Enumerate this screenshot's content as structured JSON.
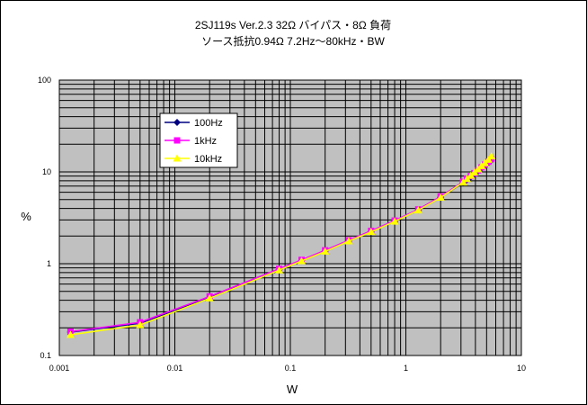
{
  "chart_data": {
    "type": "line",
    "title_line1": "2SJ119s Ver.2.3 32Ω バイパス・8Ω 負荷",
    "title_line2": "ソース抵抗0.94Ω 7.2Hz～80kHz・BW",
    "xlabel": "W",
    "ylabel": "%",
    "x_scale": "log",
    "y_scale": "log",
    "xlim": [
      0.001,
      10
    ],
    "ylim": [
      0.1,
      100
    ],
    "x_tick_labels": [
      "0.001",
      "0.01",
      "0.1",
      "1",
      "10"
    ],
    "y_tick_labels": [
      "0.1",
      "1",
      "10",
      "100"
    ],
    "grid": true,
    "plot_background": "#c0c0c0",
    "legend_position": "upper-left",
    "series": [
      {
        "name": "100Hz",
        "color": "#000080",
        "marker": "diamond",
        "x": [
          0.00125,
          0.005,
          0.02,
          0.08,
          0.125,
          0.2,
          0.32,
          0.5,
          0.8,
          1.28,
          2.0,
          3.13,
          3.38,
          3.65,
          3.92,
          4.22,
          4.52,
          4.84,
          5.18,
          5.5
        ],
        "y": [
          0.18,
          0.225,
          0.43,
          0.86,
          1.08,
          1.37,
          1.78,
          2.25,
          2.9,
          3.85,
          5.3,
          7.6,
          8.2,
          8.8,
          9.5,
          10.2,
          11.0,
          11.8,
          12.6,
          13.4
        ]
      },
      {
        "name": "1kHz",
        "color": "#ff00ff",
        "marker": "square",
        "x": [
          0.00125,
          0.005,
          0.02,
          0.08,
          0.125,
          0.2,
          0.32,
          0.5,
          0.8,
          1.28,
          2.0,
          3.13,
          3.38,
          3.65,
          3.92,
          4.22,
          4.52,
          4.84,
          5.18,
          5.5
        ],
        "y": [
          0.182,
          0.23,
          0.44,
          0.88,
          1.1,
          1.4,
          1.8,
          2.28,
          2.95,
          3.9,
          5.4,
          7.8,
          8.4,
          9.0,
          9.7,
          10.4,
          11.2,
          12.0,
          12.9,
          13.8
        ]
      },
      {
        "name": "10kHz",
        "color": "#ffff00",
        "marker": "triangle",
        "x": [
          0.00125,
          0.005,
          0.02,
          0.08,
          0.125,
          0.2,
          0.32,
          0.5,
          0.8,
          1.28,
          2.0,
          3.13,
          3.38,
          3.65,
          3.92,
          4.22,
          4.52,
          4.84,
          5.18,
          5.5
        ],
        "y": [
          0.168,
          0.215,
          0.42,
          0.85,
          1.07,
          1.36,
          1.76,
          2.22,
          2.88,
          3.82,
          5.25,
          7.7,
          8.4,
          9.1,
          9.9,
          10.7,
          11.6,
          12.5,
          13.6,
          14.8
        ]
      }
    ]
  }
}
